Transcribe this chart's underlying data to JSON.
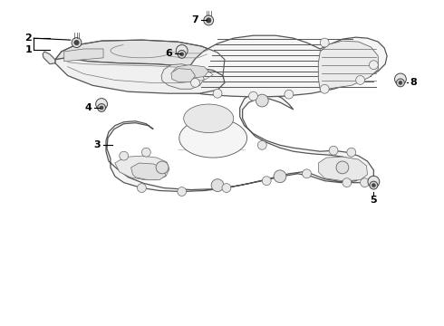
{
  "background_color": "#ffffff",
  "figure_size": [
    4.9,
    3.6
  ],
  "dpi": 100,
  "line_color": "#555555",
  "fill_color": "#f8f8f8",
  "fill_color2": "#eeeeee",
  "fill_dark": "#dddddd"
}
